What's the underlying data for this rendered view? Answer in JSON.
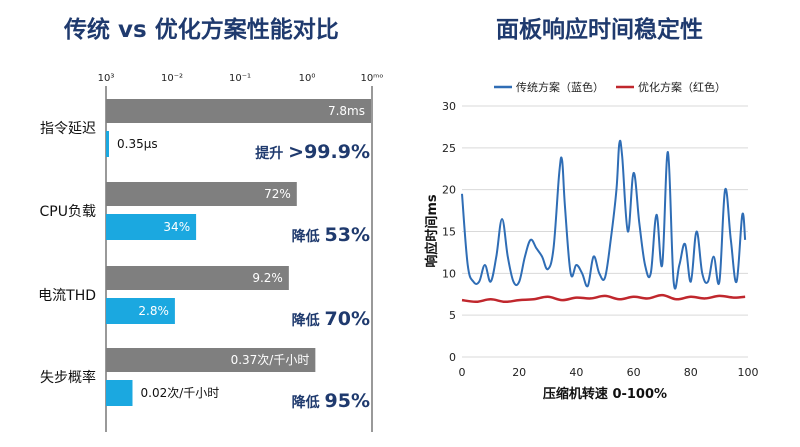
{
  "left_chart": {
    "title": "传统 vs 优化方案性能对比",
    "axis_ticks": [
      "10³",
      "10⁻²",
      "10⁻¹",
      "10⁰",
      "10ᵐᵒ"
    ],
    "colors": {
      "traditional": "#7f7f7f",
      "optimized": "#1ba8e0",
      "improvement_text": "#1f3a6e"
    },
    "rows": [
      {
        "label": "指令延迟",
        "traditional_value": 1.0,
        "traditional_label": "7.8ms",
        "optimized_value": 0.01,
        "optimized_label": "0.35μs",
        "improvement_prefix": "提升",
        "improvement_value": ">99.9%"
      },
      {
        "label": "CPU负载",
        "traditional_value": 0.72,
        "traditional_label": "72%",
        "optimized_value": 0.34,
        "optimized_label": "34%",
        "improvement_prefix": "降低",
        "improvement_value": "53%"
      },
      {
        "label": "电流THD",
        "traditional_value": 0.69,
        "traditional_label": "9.2%",
        "optimized_value": 0.26,
        "optimized_label": "2.8%",
        "improvement_prefix": "降低",
        "improvement_value": "70%"
      },
      {
        "label": "失步概率",
        "traditional_value": 0.79,
        "traditional_label": "0.37次/千小时",
        "optimized_value": 0.1,
        "optimized_label": "0.02次/千小时",
        "improvement_prefix": "降低",
        "improvement_value": "95%"
      }
    ]
  },
  "chart_data": {
    "type": "line",
    "title": "面板响应时间稳定性",
    "xlabel": "压缩机转速 0-100%",
    "ylabel": "响应时间ms",
    "xlim": [
      0,
      100
    ],
    "ylim": [
      0,
      30
    ],
    "xticks": [
      0,
      20,
      40,
      60,
      80,
      100
    ],
    "yticks": [
      0,
      5,
      10,
      15,
      20,
      25,
      30
    ],
    "legend_position": "top",
    "series": [
      {
        "name": "传统方案（蓝色）",
        "color": "#2f6db5",
        "x": [
          0,
          2,
          4,
          6,
          8,
          10,
          12,
          14,
          16,
          18,
          20,
          22,
          24,
          26,
          28,
          30,
          32,
          34,
          35,
          36,
          38,
          40,
          42,
          44,
          46,
          48,
          50,
          52,
          54,
          55,
          56,
          58,
          60,
          62,
          64,
          66,
          68,
          70,
          72,
          74,
          76,
          78,
          80,
          82,
          84,
          86,
          88,
          90,
          92,
          94,
          96,
          98,
          99
        ],
        "y": [
          19.5,
          11,
          9,
          9,
          11,
          9,
          12,
          16.5,
          12,
          9,
          9,
          12,
          14,
          13,
          12,
          10.5,
          13,
          22,
          23.5,
          18,
          10,
          11,
          10,
          8.5,
          12,
          10,
          9.5,
          14,
          20,
          25.5,
          24,
          15,
          22,
          16,
          11,
          10,
          17,
          11,
          24.5,
          9,
          11,
          13.5,
          9,
          15,
          10,
          9,
          12,
          9,
          20,
          14,
          9,
          17,
          14
        ]
      },
      {
        "name": "优化方案（红色）",
        "color": "#c0272d",
        "x": [
          0,
          5,
          10,
          15,
          20,
          25,
          30,
          35,
          40,
          45,
          50,
          55,
          60,
          65,
          70,
          75,
          80,
          85,
          90,
          95,
          99
        ],
        "y": [
          6.8,
          6.6,
          6.9,
          6.6,
          6.8,
          6.9,
          7.2,
          6.8,
          7.1,
          7.0,
          7.3,
          6.9,
          7.2,
          7.0,
          7.4,
          6.9,
          7.2,
          7.0,
          7.3,
          7.1,
          7.2
        ]
      }
    ]
  }
}
